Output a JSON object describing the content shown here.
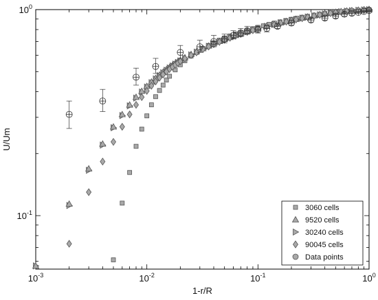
{
  "chart_data": {
    "type": "scatter",
    "xlabel": "1-r/R",
    "ylabel": "U/Um",
    "xscale": "log",
    "yscale": "log",
    "xlim": [
      0.001,
      1
    ],
    "ylim": [
      0.055,
      1
    ],
    "x_ticks": [
      {
        "value": 0.001,
        "label": "10",
        "sup": "-3"
      },
      {
        "value": 0.01,
        "label": "10",
        "sup": "-2"
      },
      {
        "value": 0.1,
        "label": "10",
        "sup": "-1"
      },
      {
        "value": 1,
        "label": "10",
        "sup": "0"
      }
    ],
    "y_ticks": [
      {
        "value": 0.1,
        "label": "10",
        "sup": "-1"
      },
      {
        "value": 1,
        "label": "10",
        "sup": "0"
      }
    ],
    "grid": false,
    "legend": {
      "placement": "bottom-right"
    },
    "colors": {
      "marker_fill": "#a9a9a9",
      "marker_stroke": "#555555",
      "axis": "#000000"
    },
    "series": [
      {
        "name": "3060 cells",
        "marker": "square",
        "x": [
          0.005,
          0.006,
          0.007,
          0.008,
          0.009,
          0.01,
          0.011,
          0.012,
          0.013,
          0.014,
          0.015,
          0.016,
          0.018,
          0.02,
          0.022,
          0.025,
          0.028,
          0.032,
          0.036,
          0.04,
          0.045,
          0.05,
          0.056,
          0.063,
          0.07,
          0.08,
          0.09,
          0.1,
          0.112,
          0.126,
          0.141,
          0.158,
          0.178,
          0.2,
          0.224,
          0.25,
          0.28,
          0.32,
          0.36,
          0.4,
          0.45,
          0.5,
          0.56,
          0.63,
          0.7,
          0.8,
          0.9,
          1.0
        ],
        "y": [
          0.061,
          0.115,
          0.162,
          0.217,
          0.263,
          0.305,
          0.345,
          0.378,
          0.405,
          0.43,
          0.455,
          0.475,
          0.51,
          0.54,
          0.565,
          0.595,
          0.62,
          0.648,
          0.67,
          0.69,
          0.71,
          0.728,
          0.745,
          0.762,
          0.776,
          0.794,
          0.808,
          0.82,
          0.834,
          0.848,
          0.86,
          0.872,
          0.885,
          0.897,
          0.908,
          0.918,
          0.928,
          0.94,
          0.95,
          0.958,
          0.965,
          0.972,
          0.978,
          0.984,
          0.988,
          0.993,
          0.997,
          1.0
        ]
      },
      {
        "name": "9520 cells",
        "marker": "triangle-up",
        "x": [
          0.001,
          0.002,
          0.003,
          0.004,
          0.005,
          0.006,
          0.007,
          0.008,
          0.009,
          0.01,
          0.011,
          0.012,
          0.013,
          0.014,
          0.015,
          0.016,
          0.017,
          0.018,
          0.019,
          0.02,
          0.022,
          0.025,
          0.028,
          0.032,
          0.036,
          0.04,
          0.045,
          0.05,
          0.056,
          0.063,
          0.07,
          0.08,
          0.09,
          0.1,
          0.12,
          0.14,
          0.16,
          0.18,
          0.2,
          0.22,
          0.25,
          0.28,
          0.32,
          0.36,
          0.4,
          0.45,
          0.5,
          0.56,
          0.63,
          0.7,
          0.8,
          0.9,
          1.0
        ],
        "y": [
          0.057,
          0.114,
          0.169,
          0.223,
          0.27,
          0.31,
          0.345,
          0.376,
          0.402,
          0.425,
          0.446,
          0.465,
          0.482,
          0.498,
          0.512,
          0.525,
          0.537,
          0.548,
          0.558,
          0.568,
          0.585,
          0.607,
          0.626,
          0.648,
          0.667,
          0.684,
          0.702,
          0.718,
          0.734,
          0.751,
          0.765,
          0.783,
          0.798,
          0.81,
          0.832,
          0.849,
          0.864,
          0.877,
          0.888,
          0.898,
          0.911,
          0.922,
          0.935,
          0.946,
          0.955,
          0.964,
          0.971,
          0.978,
          0.984,
          0.989,
          0.994,
          0.998,
          1.0
        ]
      },
      {
        "name": "30240 cells",
        "marker": "triangle-right",
        "x": [
          0.001,
          0.002,
          0.003,
          0.004,
          0.005,
          0.006,
          0.007,
          0.008,
          0.009,
          0.01,
          0.011,
          0.012,
          0.013,
          0.014,
          0.015,
          0.016,
          0.017,
          0.018,
          0.019,
          0.02,
          0.022,
          0.025,
          0.028,
          0.032,
          0.036,
          0.04,
          0.045,
          0.05,
          0.056,
          0.063,
          0.07,
          0.08,
          0.09,
          0.1,
          0.12,
          0.14,
          0.16,
          0.18,
          0.2,
          0.22,
          0.25,
          0.28,
          0.32,
          0.36,
          0.4,
          0.45,
          0.5,
          0.56,
          0.63,
          0.7,
          0.8,
          0.9,
          1.0
        ],
        "y": [
          0.057,
          0.112,
          0.166,
          0.22,
          0.267,
          0.306,
          0.341,
          0.372,
          0.398,
          0.421,
          0.442,
          0.461,
          0.478,
          0.494,
          0.508,
          0.521,
          0.533,
          0.544,
          0.554,
          0.564,
          0.581,
          0.603,
          0.622,
          0.644,
          0.663,
          0.68,
          0.698,
          0.714,
          0.731,
          0.748,
          0.762,
          0.78,
          0.795,
          0.808,
          0.83,
          0.847,
          0.862,
          0.875,
          0.886,
          0.896,
          0.909,
          0.92,
          0.933,
          0.944,
          0.953,
          0.962,
          0.97,
          0.977,
          0.983,
          0.988,
          0.993,
          0.997,
          1.0
        ]
      },
      {
        "name": "90045 cells",
        "marker": "diamond",
        "x": [
          0.002,
          0.003,
          0.004,
          0.005,
          0.006,
          0.007,
          0.008,
          0.009,
          0.01,
          0.011,
          0.012,
          0.013,
          0.014,
          0.015,
          0.016,
          0.017,
          0.018,
          0.019,
          0.02,
          0.022,
          0.025,
          0.028,
          0.032,
          0.036,
          0.04,
          0.045,
          0.05,
          0.056,
          0.063,
          0.07,
          0.08,
          0.09,
          0.1,
          0.12,
          0.14,
          0.16,
          0.18,
          0.2,
          0.22,
          0.25,
          0.28,
          0.32,
          0.36,
          0.4,
          0.45,
          0.5,
          0.56,
          0.63,
          0.7,
          0.8,
          0.9,
          1.0
        ],
        "y": [
          0.073,
          0.13,
          0.183,
          0.228,
          0.27,
          0.31,
          0.345,
          0.376,
          0.403,
          0.427,
          0.448,
          0.467,
          0.484,
          0.5,
          0.514,
          0.527,
          0.539,
          0.55,
          0.561,
          0.579,
          0.601,
          0.62,
          0.643,
          0.662,
          0.679,
          0.697,
          0.713,
          0.73,
          0.747,
          0.761,
          0.779,
          0.794,
          0.807,
          0.829,
          0.846,
          0.861,
          0.874,
          0.885,
          0.895,
          0.908,
          0.919,
          0.932,
          0.943,
          0.952,
          0.961,
          0.969,
          0.976,
          0.982,
          0.987,
          0.992,
          0.997,
          1.0
        ]
      },
      {
        "name": "Data points",
        "marker": "circle-plus",
        "error_bars": true,
        "x": [
          0.002,
          0.004,
          0.008,
          0.012,
          0.02,
          0.03,
          0.04,
          0.05,
          0.06,
          0.07,
          0.08,
          0.1,
          0.12,
          0.15,
          0.2,
          0.3,
          0.4,
          0.5,
          0.6,
          0.7,
          0.8,
          0.9,
          1.0
        ],
        "y": [
          0.31,
          0.36,
          0.47,
          0.53,
          0.62,
          0.66,
          0.7,
          0.72,
          0.75,
          0.77,
          0.79,
          0.8,
          0.81,
          0.83,
          0.86,
          0.89,
          0.91,
          0.93,
          0.95,
          0.96,
          0.97,
          0.98,
          0.99
        ],
        "err_low": [
          0.265,
          0.32,
          0.43,
          0.49,
          0.58,
          0.62,
          0.66,
          0.69,
          0.72,
          0.74,
          0.76,
          0.77,
          0.78,
          0.81,
          0.84,
          0.87,
          0.89,
          0.91,
          0.93,
          0.94,
          0.96,
          0.97,
          0.98
        ],
        "err_high": [
          0.36,
          0.41,
          0.52,
          0.58,
          0.67,
          0.71,
          0.75,
          0.76,
          0.79,
          0.81,
          0.83,
          0.83,
          0.84,
          0.86,
          0.89,
          0.91,
          0.93,
          0.95,
          0.97,
          0.98,
          0.98,
          0.99,
          1.0
        ]
      }
    ]
  }
}
